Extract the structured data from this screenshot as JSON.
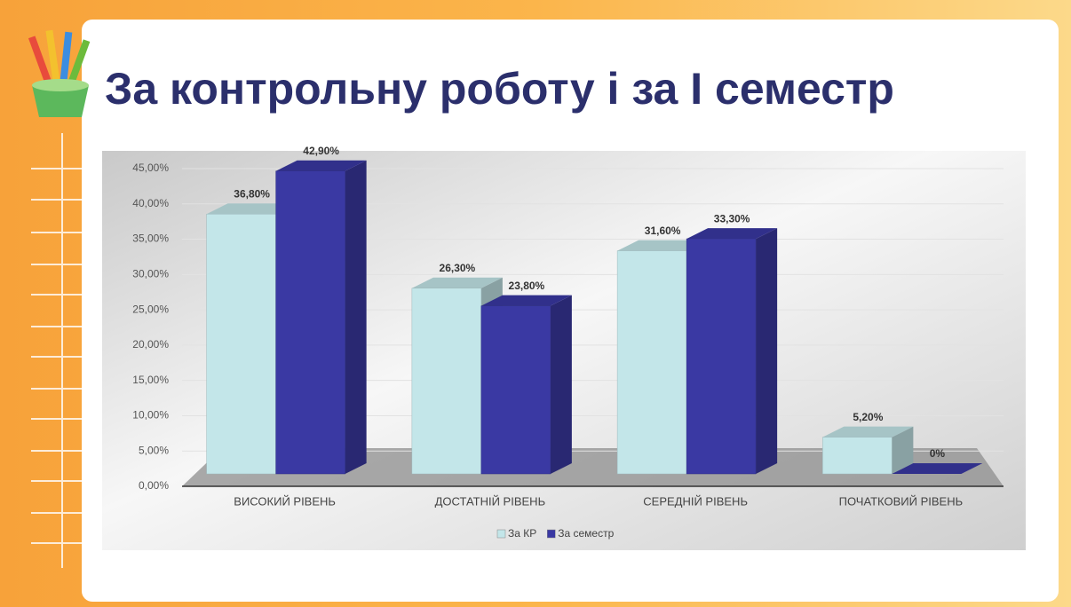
{
  "chart_data": {
    "type": "bar3d",
    "title": "За контрольну роботу і за І семестр",
    "categories": [
      "ВИСОКИЙ РІВЕНЬ",
      "ДОСТАТНІЙ РІВЕНЬ",
      "СЕРЕДНІЙ РІВЕНЬ",
      "ПОЧАТКОВИЙ РІВЕНЬ"
    ],
    "series": [
      {
        "name": "За КР",
        "color": "#c3e6e9",
        "values": [
          36.8,
          26.3,
          31.6,
          5.2
        ],
        "value_labels": [
          "36,80%",
          "26,30%",
          "31,60%",
          "5,20%"
        ]
      },
      {
        "name": "За семестр",
        "color": "#3a39a3",
        "values": [
          42.9,
          23.8,
          33.3,
          0
        ],
        "value_labels": [
          "42,90%",
          "23,80%",
          "33,30%",
          "0%"
        ]
      }
    ],
    "ylim": [
      0,
      45
    ],
    "yticks": [
      {
        "value": 0,
        "label": "0,00%"
      },
      {
        "value": 5,
        "label": "5,00%"
      },
      {
        "value": 10,
        "label": "10,00%"
      },
      {
        "value": 15,
        "label": "15,00%"
      },
      {
        "value": 20,
        "label": "20,00%"
      },
      {
        "value": 25,
        "label": "25,00%"
      },
      {
        "value": 30,
        "label": "30,00%"
      },
      {
        "value": 35,
        "label": "35,00%"
      },
      {
        "value": 40,
        "label": "40,00%"
      },
      {
        "value": 45,
        "label": "45,00%"
      }
    ],
    "grid": true,
    "legend": "bottom"
  }
}
